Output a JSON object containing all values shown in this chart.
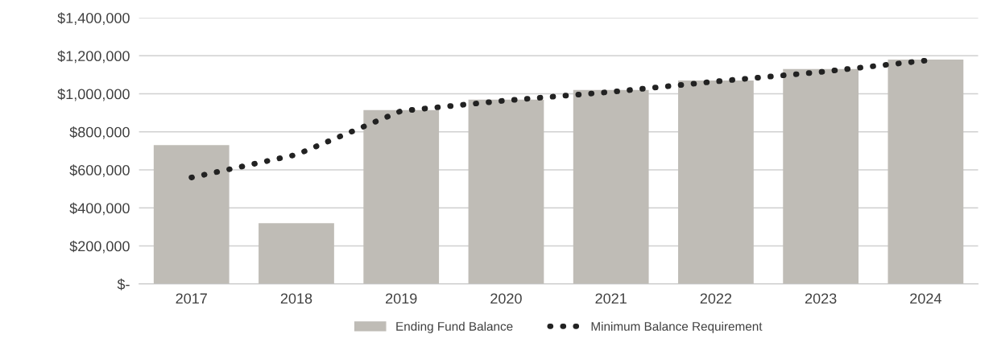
{
  "chart_data": {
    "type": "bar",
    "categories": [
      "2017",
      "2018",
      "2019",
      "2020",
      "2021",
      "2022",
      "2023",
      "2024"
    ],
    "series": [
      {
        "name": "Ending Fund Balance",
        "color": "#bfbcb6",
        "values": [
          730000,
          320000,
          915000,
          970000,
          1020000,
          1070000,
          1130000,
          1180000
        ]
      },
      {
        "name": "Minimum Balance Requirement",
        "type": "line",
        "color": "#222222",
        "line_style": "dotted",
        "values": [
          560000,
          680000,
          910000,
          965000,
          1010000,
          1065000,
          1115000,
          1175000
        ]
      }
    ],
    "ylim": [
      0,
      1400000
    ],
    "yticks": [
      {
        "value": 0,
        "label": "$-"
      },
      {
        "value": 200000,
        "label": "$200,000"
      },
      {
        "value": 400000,
        "label": "$400,000"
      },
      {
        "value": 600000,
        "label": "$600,000"
      },
      {
        "value": 800000,
        "label": "$800,000"
      },
      {
        "value": 1000000,
        "label": "$1,000,000"
      },
      {
        "value": 1200000,
        "label": "$1,200,000"
      },
      {
        "value": 1400000,
        "label": "$1,400,000"
      }
    ],
    "grid": "y",
    "legend": "bottom"
  }
}
